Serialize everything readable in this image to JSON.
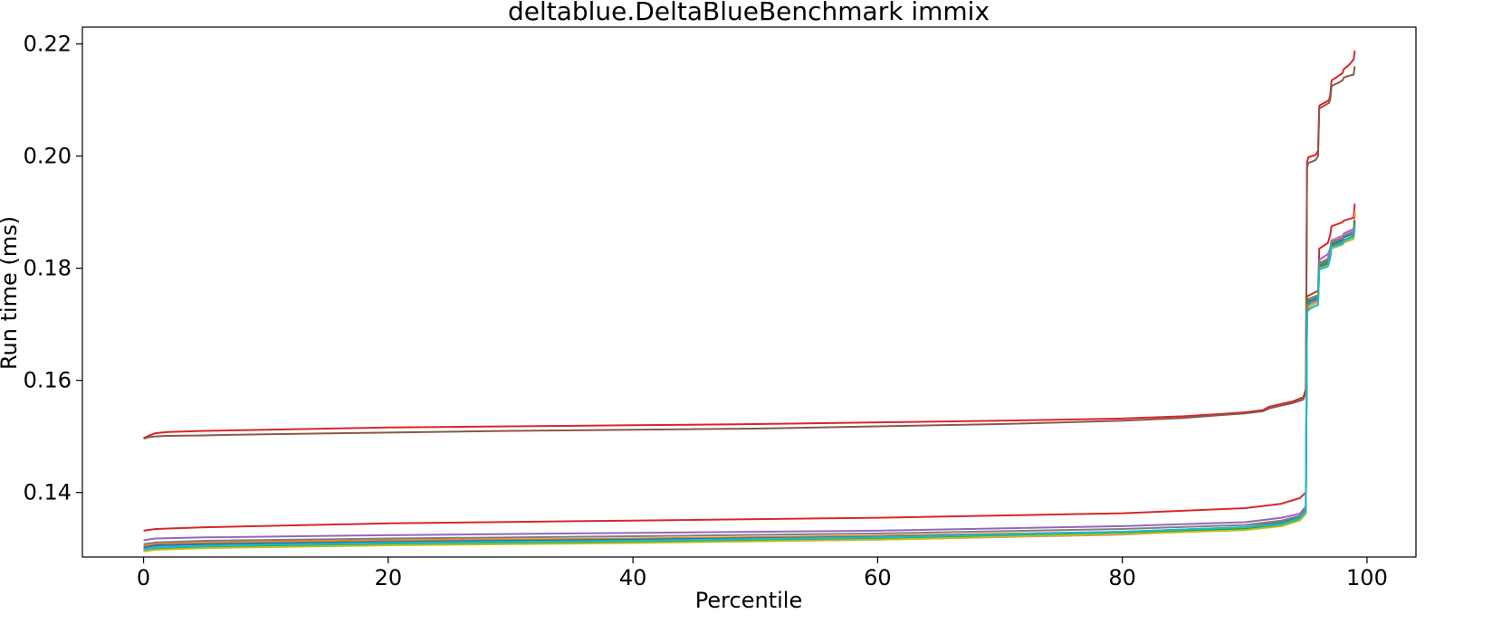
{
  "chart_data": {
    "type": "line",
    "title": "deltablue.DeltaBlueBenchmark immix",
    "xlabel": "Percentile",
    "ylabel": "Run time (ms)",
    "xlim": [
      -5,
      104
    ],
    "ylim": [
      0.1285,
      0.223
    ],
    "xticks": [
      0,
      20,
      40,
      60,
      80,
      100
    ],
    "yticks": [
      0.14,
      0.16,
      0.18,
      0.2,
      0.22
    ],
    "xtick_labels": [
      "0",
      "20",
      "40",
      "60",
      "80",
      "100"
    ],
    "ytick_labels": [
      "0.14",
      "0.16",
      "0.18",
      "0.20",
      "0.22"
    ],
    "grid": false,
    "legend": "none",
    "series": [
      {
        "color": "#d62728",
        "x": [
          0,
          0.5,
          1,
          2,
          5,
          10,
          20,
          30,
          40,
          50,
          60,
          70,
          80,
          85,
          88,
          90,
          91.5,
          92,
          93,
          94,
          94.8,
          95,
          95.1,
          95.2,
          95.5,
          95.8,
          96,
          96.1,
          96.5,
          96.9,
          97,
          97.1,
          97.6,
          98,
          98.1,
          98.5,
          98.9,
          99
        ],
        "y": [
          0.1497,
          0.1502,
          0.1506,
          0.1508,
          0.151,
          0.1512,
          0.1516,
          0.1518,
          0.152,
          0.1522,
          0.1525,
          0.1528,
          0.1532,
          0.1536,
          0.154,
          0.1543,
          0.1547,
          0.1553,
          0.1558,
          0.1563,
          0.157,
          0.1585,
          0.199,
          0.1998,
          0.2,
          0.2002,
          0.201,
          0.209,
          0.2095,
          0.21,
          0.211,
          0.2135,
          0.2142,
          0.2148,
          0.2155,
          0.2162,
          0.2172,
          0.2188
        ]
      },
      {
        "color": "#8c564b",
        "x": [
          0,
          0.5,
          1,
          2,
          5,
          10,
          20,
          30,
          40,
          50,
          60,
          70,
          80,
          85,
          88,
          90,
          91.5,
          92,
          93,
          94,
          94.8,
          95,
          95.1,
          95.2,
          95.5,
          95.8,
          96,
          96.1,
          96.5,
          96.9,
          97,
          97.1,
          97.6,
          98,
          98.1,
          98.5,
          98.9,
          99
        ],
        "y": [
          0.1496,
          0.1499,
          0.15,
          0.1501,
          0.1502,
          0.1504,
          0.1507,
          0.151,
          0.1512,
          0.1514,
          0.1518,
          0.1522,
          0.1528,
          0.1533,
          0.1538,
          0.1541,
          0.1545,
          0.155,
          0.1555,
          0.156,
          0.1566,
          0.158,
          0.198,
          0.1988,
          0.199,
          0.1993,
          0.2,
          0.2085,
          0.209,
          0.2095,
          0.2102,
          0.2125,
          0.213,
          0.2135,
          0.214,
          0.2143,
          0.2145,
          0.216
        ]
      },
      {
        "color": "#d62728",
        "x": [
          0,
          1,
          5,
          20,
          40,
          60,
          80,
          90,
          93,
          94.5,
          95,
          95.1,
          95.3,
          96,
          96.1,
          96.8,
          97,
          97.1,
          98,
          98.1,
          98.9,
          99
        ],
        "y": [
          0.1332,
          0.1335,
          0.1338,
          0.1345,
          0.135,
          0.1355,
          0.1363,
          0.1372,
          0.138,
          0.139,
          0.14,
          0.175,
          0.1752,
          0.176,
          0.1835,
          0.1845,
          0.186,
          0.1875,
          0.1882,
          0.1885,
          0.189,
          0.1915
        ]
      },
      {
        "color": "#9467bd",
        "x": [
          0,
          1,
          5,
          20,
          40,
          60,
          80,
          90,
          93,
          94.5,
          95,
          95.1,
          95.3,
          96,
          96.1,
          96.8,
          97,
          97.1,
          98,
          98.1,
          98.9,
          99
        ],
        "y": [
          0.1315,
          0.1318,
          0.132,
          0.1324,
          0.1328,
          0.1332,
          0.134,
          0.1347,
          0.1355,
          0.1362,
          0.1375,
          0.1735,
          0.174,
          0.1748,
          0.1815,
          0.1825,
          0.1835,
          0.185,
          0.1858,
          0.1862,
          0.187,
          0.1895
        ]
      },
      {
        "color": "#ff7f0e",
        "x": [
          0,
          1,
          5,
          20,
          40,
          60,
          80,
          90,
          93,
          94.5,
          95,
          95.1,
          95.3,
          96,
          96.1,
          96.8,
          97,
          97.1,
          98,
          98.1,
          98.9,
          99
        ],
        "y": [
          0.1305,
          0.1309,
          0.1311,
          0.1315,
          0.1318,
          0.1323,
          0.133,
          0.1338,
          0.1348,
          0.1358,
          0.137,
          0.1725,
          0.1728,
          0.1735,
          0.18,
          0.181,
          0.1825,
          0.1845,
          0.1852,
          0.1857,
          0.1865,
          0.19
        ]
      },
      {
        "color": "#e377c2",
        "x": [
          0,
          1,
          5,
          20,
          40,
          60,
          80,
          90,
          93,
          94.5,
          95,
          95.1,
          95.3,
          96,
          96.1,
          96.8,
          97,
          97.1,
          98,
          98.1,
          98.9,
          99
        ],
        "y": [
          0.13,
          0.1303,
          0.1305,
          0.1308,
          0.1311,
          0.1316,
          0.1325,
          0.1335,
          0.1345,
          0.1355,
          0.1368,
          0.1732,
          0.1736,
          0.1742,
          0.1808,
          0.1818,
          0.1832,
          0.185,
          0.1856,
          0.186,
          0.1866,
          0.188
        ]
      },
      {
        "color": "#1f77b4",
        "x": [
          0,
          1,
          5,
          20,
          40,
          60,
          80,
          90,
          93,
          94.5,
          95,
          95.1,
          95.3,
          96,
          96.1,
          96.8,
          97,
          97.1,
          98,
          98.1,
          98.9,
          99
        ],
        "y": [
          0.1302,
          0.1306,
          0.1308,
          0.1312,
          0.1316,
          0.1321,
          0.133,
          0.1338,
          0.1346,
          0.1356,
          0.1368,
          0.1738,
          0.1742,
          0.1748,
          0.1803,
          0.1808,
          0.1825,
          0.1843,
          0.185,
          0.1855,
          0.1862,
          0.1885
        ]
      },
      {
        "color": "#2ca02c",
        "x": [
          0,
          1,
          5,
          20,
          40,
          60,
          80,
          90,
          93,
          94.5,
          95,
          95.1,
          95.3,
          96,
          96.1,
          96.8,
          97,
          97.1,
          98,
          98.1,
          98.9,
          99
        ],
        "y": [
          0.1296,
          0.13,
          0.1303,
          0.1307,
          0.1312,
          0.1318,
          0.1328,
          0.1335,
          0.1342,
          0.1352,
          0.1365,
          0.1742,
          0.1746,
          0.1752,
          0.1806,
          0.1812,
          0.1828,
          0.184,
          0.1846,
          0.185,
          0.1858,
          0.1878
        ]
      },
      {
        "color": "#bcbd22",
        "x": [
          0,
          1,
          5,
          20,
          40,
          60,
          80,
          90,
          93,
          94.5,
          95,
          95.1,
          95.3,
          96,
          96.1,
          96.8,
          97,
          97.1,
          98,
          98.1,
          98.9,
          99
        ],
        "y": [
          0.1295,
          0.1298,
          0.1301,
          0.1306,
          0.131,
          0.1316,
          0.1326,
          0.1333,
          0.134,
          0.135,
          0.1362,
          0.1728,
          0.1732,
          0.174,
          0.18,
          0.1805,
          0.182,
          0.1835,
          0.1842,
          0.1846,
          0.1852,
          0.1868
        ]
      },
      {
        "color": "#7f7f7f",
        "x": [
          0,
          1,
          5,
          20,
          40,
          60,
          80,
          90,
          93,
          94.5,
          95,
          95.1,
          95.3,
          96,
          96.1,
          96.8,
          97,
          97.1,
          98,
          98.1,
          98.9,
          99
        ],
        "y": [
          0.1308,
          0.1311,
          0.1314,
          0.1318,
          0.1322,
          0.1327,
          0.1335,
          0.1342,
          0.135,
          0.1358,
          0.1372,
          0.1733,
          0.1737,
          0.1745,
          0.181,
          0.1815,
          0.183,
          0.1848,
          0.1853,
          0.1858,
          0.1864,
          0.188
        ]
      },
      {
        "color": "#17becf",
        "x": [
          0,
          1,
          5,
          20,
          40,
          60,
          80,
          90,
          93,
          94.5,
          95,
          95.1,
          95.3,
          96,
          96.1,
          96.8,
          97,
          97.1,
          98,
          98.1,
          98.9,
          99
        ],
        "y": [
          0.1298,
          0.1302,
          0.1305,
          0.131,
          0.1314,
          0.132,
          0.133,
          0.1338,
          0.1344,
          0.1354,
          0.1366,
          0.1722,
          0.1727,
          0.1735,
          0.1798,
          0.1803,
          0.1818,
          0.1838,
          0.1844,
          0.1849,
          0.1856,
          0.1875
        ]
      }
    ]
  }
}
